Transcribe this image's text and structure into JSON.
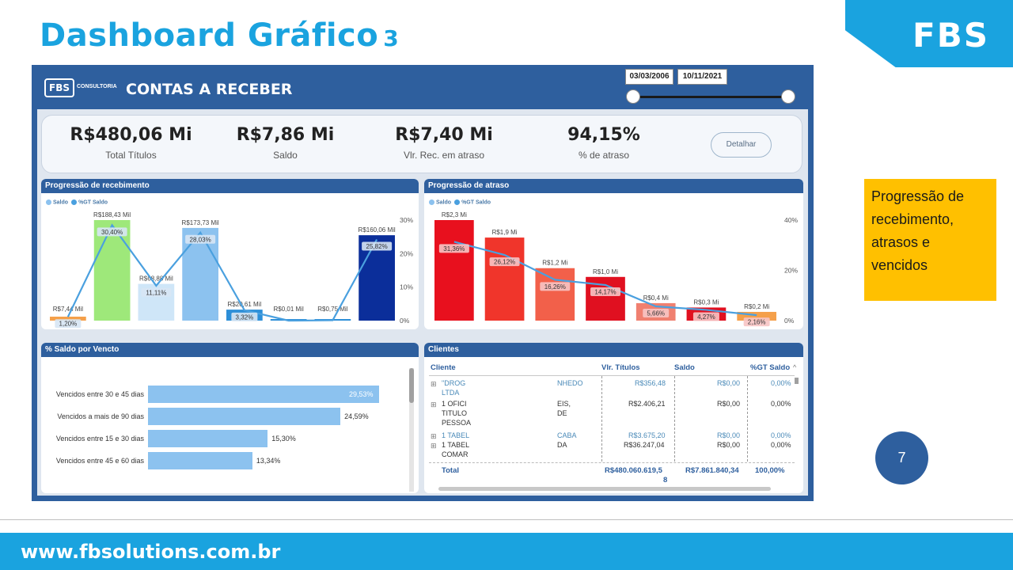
{
  "slide": {
    "title": "Dashboard Gráfico",
    "title_number": "3",
    "brand": "FBS",
    "note": [
      "Progressão de",
      "recebimento,",
      "atrasos e",
      "vencidos"
    ],
    "page_number": "7",
    "footer_url": "www.fbsolutions.com.br"
  },
  "dashboard": {
    "logo_text": "FBS",
    "logo_sub": "CONSULTORIA",
    "title": "CONTAS A RECEBER",
    "date_start": "03/03/2006",
    "date_end": "10/11/2021",
    "kpis": [
      {
        "value": "R$480,06 Mi",
        "label": "Total Títulos"
      },
      {
        "value": "R$7,86 Mi",
        "label": "Saldo"
      },
      {
        "value": "R$7,40 Mi",
        "label": "Vlr. Rec. em atraso"
      },
      {
        "value": "94,15%",
        "label": "% de atraso"
      }
    ],
    "detail_button": "Detalhar",
    "legend": {
      "saldo": "Saldo",
      "gt": "%GT Saldo"
    }
  },
  "chart_data": [
    {
      "type": "bar",
      "title": "Progressão de recebimento",
      "series": [
        {
          "name": "Saldo",
          "values_mil": [
            7.44,
            188.43,
            68.88,
            173.73,
            20.61,
            0.01,
            0.75,
            160.06
          ],
          "labels": [
            "R$7,44 Mil",
            "R$188,43 Mil",
            "R$68,88 Mil",
            "R$173,73 Mil",
            "R$20,61 Mil",
            "R$0,01 Mil",
            "R$0,75 Mil",
            "R$160,06 Mil"
          ]
        },
        {
          "name": "%GT Saldo",
          "values": [
            1.2,
            30.4,
            11.11,
            28.03,
            3.32,
            0.0,
            0.11,
            25.82
          ],
          "labels": [
            "1,20%",
            "30,40%",
            "11,11%",
            "28,03%",
            "3,32%",
            "",
            "",
            "25,82%"
          ]
        }
      ],
      "colors": [
        "#f5a04a",
        "#9ee87a",
        "#cfe6f8",
        "#8cc2ef",
        "#2d8fd8",
        "#2d8fd8",
        "#2d8fd8",
        "#0b2e9a"
      ],
      "y2_ticks": [
        "30%",
        "20%",
        "10%",
        "0%"
      ],
      "y2lim": [
        0,
        32
      ]
    },
    {
      "type": "bar",
      "title": "Progressão de atraso",
      "series": [
        {
          "name": "Saldo",
          "values_mi": [
            2.3,
            1.9,
            1.2,
            1.0,
            0.4,
            0.3,
            0.2
          ],
          "labels": [
            "R$2,3 Mi",
            "R$1,9 Mi",
            "R$1,2 Mi",
            "R$1,0 Mi",
            "R$0,4 Mi",
            "R$0,3 Mi",
            "R$0,2 Mi"
          ]
        },
        {
          "name": "%GT Saldo",
          "values": [
            31.36,
            26.12,
            16.26,
            14.17,
            5.66,
            4.27,
            2.16
          ],
          "labels": [
            "31,36%",
            "26,12%",
            "16,26%",
            "14,17%",
            "5,66%",
            "4,27%",
            "2,16%"
          ]
        }
      ],
      "colors": [
        "#e8101e",
        "#f0352b",
        "#f2604a",
        "#e01020",
        "#f08070",
        "#e01020",
        "#f5a04a"
      ],
      "y2_ticks": [
        "40%",
        "20%",
        "0%"
      ],
      "y2lim": [
        0,
        40
      ]
    },
    {
      "type": "bar",
      "title": "% Saldo por Vencto",
      "orientation": "horizontal",
      "categories": [
        "Vencidos entre 30 e 45 dias",
        "Vencidos a mais de 90 dias",
        "Vencidos entre 15 e 30 dias",
        "Vencidos entre 45 e 60 dias"
      ],
      "values": [
        29.53,
        24.59,
        15.3,
        13.34
      ],
      "labels": [
        "29,53%",
        "24,59%",
        "15,30%",
        "13,34%"
      ]
    }
  ],
  "clients_table": {
    "title": "Clientes",
    "columns": [
      "Cliente",
      "Vlr. Títulos",
      "Saldo",
      "%GT Saldo"
    ],
    "rows": [
      {
        "c1": "\"DROG",
        "c1b": "NHEDO",
        "c2": "LTDA",
        "vlr": "R$356,48",
        "saldo": "R$0,00",
        "gt": "0,00%"
      },
      {
        "c1": "1 OFICI",
        "c1b": "EIS,",
        "c2": "TITULO",
        "c2b": "DE",
        "c3": "PESSOA",
        "vlr": "R$2.406,21",
        "saldo": "R$0,00",
        "gt": "0,00%"
      },
      {
        "c1": "1 TABEL",
        "c1b": "CABA",
        "vlr": "R$3.675,20",
        "saldo": "R$0,00",
        "gt": "0,00%"
      },
      {
        "c1": "1 TABEL",
        "c1b": "DA",
        "c2": "COMAR",
        "vlr": "R$36.247,04",
        "saldo": "R$0,00",
        "gt": "0,00%"
      }
    ],
    "total": {
      "label": "Total",
      "vlr": "R$480.060.619,5",
      "vlr_cont": "8",
      "saldo": "R$7.861.840,34",
      "gt": "100,00%"
    }
  }
}
